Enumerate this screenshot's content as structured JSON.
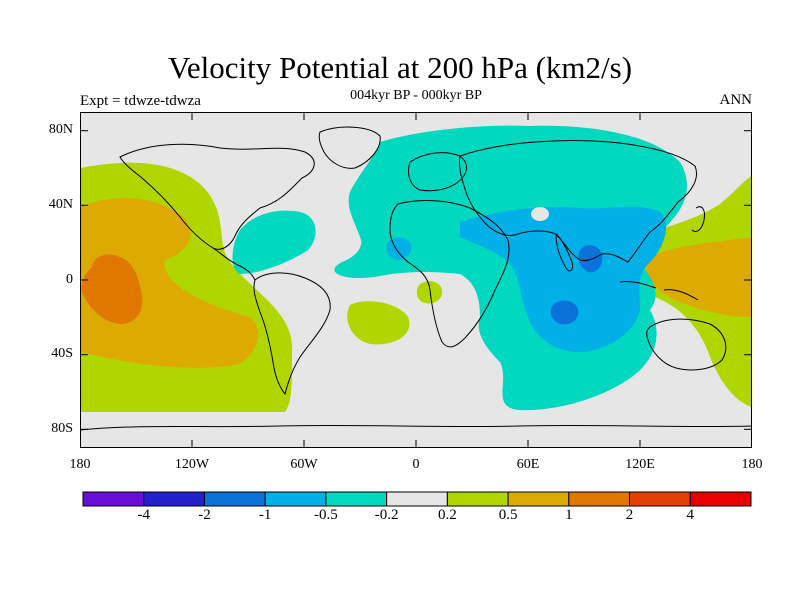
{
  "title": "Velocity Potential at 200 hPa (km2/s)",
  "subtitle": "004kyr BP - 000kyr BP",
  "left_label": "Expt = tdwze-tdwza",
  "right_label": "ANN",
  "y_ticks": [
    "80N",
    "40N",
    "0",
    "40S",
    "80S"
  ],
  "x_ticks": [
    "180",
    "120W",
    "60W",
    "0",
    "60E",
    "120E",
    "180"
  ],
  "colorbar": {
    "colors": [
      "#6a0fd6",
      "#2222cc",
      "#0a72d8",
      "#00b0e6",
      "#00d8c0",
      "#e6e6e6",
      "#b0d600",
      "#dcaa00",
      "#e07800",
      "#e04000",
      "#e60000"
    ],
    "labels": [
      "-4",
      "-2",
      "-1",
      "-0.5",
      "-0.2",
      "0.2",
      "0.5",
      "1",
      "2",
      "4"
    ]
  }
}
